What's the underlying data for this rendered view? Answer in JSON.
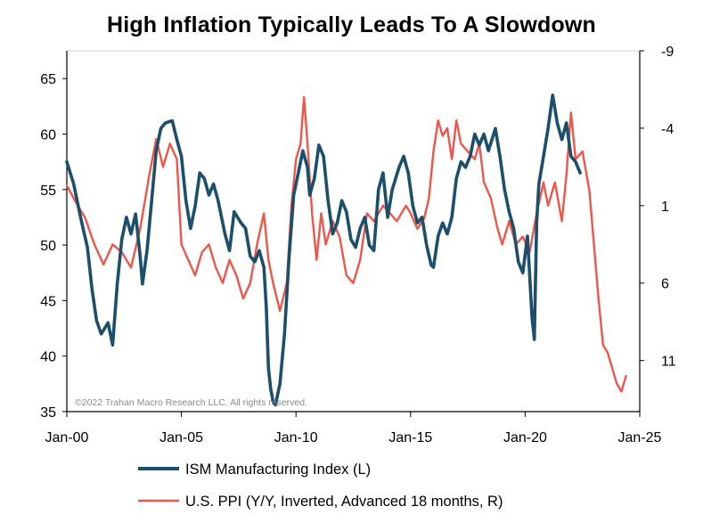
{
  "chart_data": {
    "type": "line",
    "title": "High Inflation Typically Leads To A Slowdown",
    "copyright": "©2022 Trahan Macro Research LLC. All rights reserved.",
    "x_axis": {
      "range": [
        2000.0,
        2025.0
      ],
      "ticks": [
        {
          "value": 2000,
          "label": "Jan-00"
        },
        {
          "value": 2005,
          "label": "Jan-05"
        },
        {
          "value": 2010,
          "label": "Jan-10"
        },
        {
          "value": 2015,
          "label": "Jan-15"
        },
        {
          "value": 2020,
          "label": "Jan-20"
        },
        {
          "value": 2025,
          "label": "Jan-25"
        }
      ]
    },
    "y_left": {
      "range": [
        35,
        67.5
      ],
      "ticks": [
        35,
        40,
        45,
        50,
        55,
        60,
        65
      ],
      "labels": [
        "35",
        "40",
        "45",
        "50",
        "55",
        "60",
        "65"
      ]
    },
    "y_right": {
      "range": [
        -9,
        14.3
      ],
      "inverted": true,
      "ticks": [
        -9,
        -4,
        1,
        6,
        11
      ],
      "labels": [
        "-9",
        "-4",
        "1",
        "6",
        "11"
      ]
    },
    "series": [
      {
        "name": "ISM Manufacturing Index (L)",
        "axis": "left",
        "color": "#1b4f6b",
        "points": [
          [
            2000.0,
            57.5
          ],
          [
            2000.3,
            55.5
          ],
          [
            2000.6,
            52.5
          ],
          [
            2000.9,
            49.8
          ],
          [
            2001.1,
            46.0
          ],
          [
            2001.3,
            43.2
          ],
          [
            2001.5,
            42.0
          ],
          [
            2001.8,
            43.0
          ],
          [
            2002.0,
            41.0
          ],
          [
            2002.2,
            46.5
          ],
          [
            2002.4,
            50.5
          ],
          [
            2002.6,
            52.5
          ],
          [
            2002.8,
            51.0
          ],
          [
            2003.0,
            52.8
          ],
          [
            2003.2,
            49.0
          ],
          [
            2003.3,
            46.5
          ],
          [
            2003.5,
            49.5
          ],
          [
            2003.7,
            54.0
          ],
          [
            2003.9,
            58.5
          ],
          [
            2004.1,
            60.5
          ],
          [
            2004.3,
            61.0
          ],
          [
            2004.6,
            61.2
          ],
          [
            2004.8,
            59.5
          ],
          [
            2005.0,
            58.0
          ],
          [
            2005.2,
            54.0
          ],
          [
            2005.4,
            51.5
          ],
          [
            2005.6,
            53.5
          ],
          [
            2005.8,
            56.5
          ],
          [
            2006.0,
            56.0
          ],
          [
            2006.2,
            54.5
          ],
          [
            2006.4,
            55.5
          ],
          [
            2006.6,
            54.0
          ],
          [
            2006.9,
            51.0
          ],
          [
            2007.1,
            49.5
          ],
          [
            2007.3,
            53.0
          ],
          [
            2007.6,
            52.0
          ],
          [
            2007.8,
            51.5
          ],
          [
            2008.0,
            49.0
          ],
          [
            2008.2,
            48.5
          ],
          [
            2008.4,
            49.5
          ],
          [
            2008.6,
            48.0
          ],
          [
            2008.7,
            44.5
          ],
          [
            2008.8,
            38.9
          ],
          [
            2008.9,
            37.0
          ],
          [
            2009.0,
            35.9
          ],
          [
            2009.1,
            35.6
          ],
          [
            2009.3,
            37.5
          ],
          [
            2009.5,
            42.0
          ],
          [
            2009.7,
            49.0
          ],
          [
            2009.9,
            54.5
          ],
          [
            2010.1,
            56.5
          ],
          [
            2010.3,
            58.5
          ],
          [
            2010.5,
            57.0
          ],
          [
            2010.6,
            54.5
          ],
          [
            2010.8,
            56.0
          ],
          [
            2011.0,
            59.0
          ],
          [
            2011.2,
            58.0
          ],
          [
            2011.4,
            54.0
          ],
          [
            2011.6,
            51.0
          ],
          [
            2011.8,
            52.0
          ],
          [
            2012.0,
            54.0
          ],
          [
            2012.2,
            53.0
          ],
          [
            2012.4,
            50.5
          ],
          [
            2012.6,
            49.8
          ],
          [
            2012.8,
            51.5
          ],
          [
            2013.0,
            52.5
          ],
          [
            2013.2,
            50.0
          ],
          [
            2013.4,
            49.5
          ],
          [
            2013.6,
            55.0
          ],
          [
            2013.8,
            56.5
          ],
          [
            2014.0,
            52.5
          ],
          [
            2014.2,
            55.0
          ],
          [
            2014.5,
            57.0
          ],
          [
            2014.7,
            58.0
          ],
          [
            2014.9,
            56.5
          ],
          [
            2015.1,
            53.5
          ],
          [
            2015.3,
            52.0
          ],
          [
            2015.5,
            52.5
          ],
          [
            2015.7,
            50.0
          ],
          [
            2015.9,
            48.2
          ],
          [
            2016.0,
            48.0
          ],
          [
            2016.2,
            50.8
          ],
          [
            2016.4,
            52.0
          ],
          [
            2016.6,
            51.0
          ],
          [
            2016.8,
            52.5
          ],
          [
            2017.0,
            56.0
          ],
          [
            2017.2,
            57.5
          ],
          [
            2017.4,
            57.0
          ],
          [
            2017.6,
            58.0
          ],
          [
            2017.8,
            60.0
          ],
          [
            2018.0,
            59.0
          ],
          [
            2018.2,
            60.0
          ],
          [
            2018.4,
            58.5
          ],
          [
            2018.7,
            60.5
          ],
          [
            2018.9,
            58.0
          ],
          [
            2019.1,
            55.0
          ],
          [
            2019.3,
            53.0
          ],
          [
            2019.5,
            51.5
          ],
          [
            2019.7,
            48.5
          ],
          [
            2019.9,
            47.5
          ],
          [
            2020.1,
            50.8
          ],
          [
            2020.3,
            43.5
          ],
          [
            2020.4,
            41.5
          ],
          [
            2020.5,
            52.0
          ],
          [
            2020.6,
            55.5
          ],
          [
            2020.8,
            58.0
          ],
          [
            2021.0,
            60.5
          ],
          [
            2021.2,
            63.5
          ],
          [
            2021.4,
            61.0
          ],
          [
            2021.6,
            59.5
          ],
          [
            2021.8,
            61.0
          ],
          [
            2022.0,
            58.0
          ],
          [
            2022.2,
            57.5
          ],
          [
            2022.4,
            56.5
          ]
        ]
      },
      {
        "name": "U.S. PPI (Y/Y, Inverted, Advanced 18 months, R)",
        "axis": "right",
        "color": "#f0554a",
        "points": [
          [
            2000.0,
            -0.3
          ],
          [
            2000.4,
            0.8
          ],
          [
            2000.8,
            1.8
          ],
          [
            2001.2,
            3.5
          ],
          [
            2001.6,
            4.8
          ],
          [
            2002.0,
            3.5
          ],
          [
            2002.4,
            4.0
          ],
          [
            2002.8,
            5.0
          ],
          [
            2003.2,
            2.5
          ],
          [
            2003.6,
            -1.0
          ],
          [
            2003.9,
            -3.3
          ],
          [
            2004.2,
            -1.5
          ],
          [
            2004.5,
            -3.0
          ],
          [
            2004.8,
            -2.0
          ],
          [
            2005.0,
            3.5
          ],
          [
            2005.3,
            4.5
          ],
          [
            2005.6,
            5.5
          ],
          [
            2005.9,
            4.0
          ],
          [
            2006.2,
            3.5
          ],
          [
            2006.5,
            5.0
          ],
          [
            2006.8,
            6.0
          ],
          [
            2007.1,
            4.5
          ],
          [
            2007.4,
            5.5
          ],
          [
            2007.7,
            7.0
          ],
          [
            2008.0,
            6.0
          ],
          [
            2008.3,
            3.5
          ],
          [
            2008.6,
            1.5
          ],
          [
            2008.8,
            4.5
          ],
          [
            2009.0,
            6.0
          ],
          [
            2009.3,
            7.8
          ],
          [
            2009.6,
            6.0
          ],
          [
            2009.8,
            1.0
          ],
          [
            2010.0,
            -2.0
          ],
          [
            2010.2,
            -3.0
          ],
          [
            2010.35,
            -6.0
          ],
          [
            2010.5,
            -3.0
          ],
          [
            2010.7,
            1.5
          ],
          [
            2010.9,
            4.5
          ],
          [
            2011.1,
            1.5
          ],
          [
            2011.3,
            3.5
          ],
          [
            2011.6,
            2.0
          ],
          [
            2011.9,
            3.0
          ],
          [
            2012.2,
            5.5
          ],
          [
            2012.5,
            6.0
          ],
          [
            2012.8,
            4.5
          ],
          [
            2013.1,
            1.5
          ],
          [
            2013.4,
            2.0
          ],
          [
            2013.8,
            1.0
          ],
          [
            2014.1,
            1.5
          ],
          [
            2014.4,
            2.0
          ],
          [
            2014.8,
            1.0
          ],
          [
            2015.0,
            1.5
          ],
          [
            2015.3,
            2.5
          ],
          [
            2015.6,
            1.8
          ],
          [
            2015.8,
            0.5
          ],
          [
            2016.0,
            -2.5
          ],
          [
            2016.2,
            -4.5
          ],
          [
            2016.4,
            -3.5
          ],
          [
            2016.6,
            -4.0
          ],
          [
            2016.8,
            -2.0
          ],
          [
            2017.0,
            -4.5
          ],
          [
            2017.2,
            -3.0
          ],
          [
            2017.5,
            -2.5
          ],
          [
            2017.8,
            -2.0
          ],
          [
            2018.0,
            -3.0
          ],
          [
            2018.2,
            -0.5
          ],
          [
            2018.5,
            0.5
          ],
          [
            2018.8,
            2.5
          ],
          [
            2019.0,
            3.5
          ],
          [
            2019.3,
            2.0
          ],
          [
            2019.6,
            3.5
          ],
          [
            2019.9,
            3.0
          ],
          [
            2020.2,
            4.0
          ],
          [
            2020.5,
            1.5
          ],
          [
            2020.8,
            -0.5
          ],
          [
            2021.0,
            1.0
          ],
          [
            2021.3,
            -0.5
          ],
          [
            2021.6,
            2.0
          ],
          [
            2021.8,
            -1.0
          ],
          [
            2022.0,
            -5.0
          ],
          [
            2022.2,
            -2.0
          ],
          [
            2022.5,
            -2.5
          ],
          [
            2022.8,
            0.0
          ],
          [
            2023.0,
            3.5
          ],
          [
            2023.2,
            7.0
          ],
          [
            2023.4,
            10.0
          ],
          [
            2023.6,
            10.5
          ],
          [
            2023.8,
            11.5
          ],
          [
            2024.0,
            12.5
          ],
          [
            2024.2,
            13.0
          ],
          [
            2024.4,
            12.0
          ]
        ]
      }
    ],
    "legend": {
      "placement": "bottom",
      "items": [
        {
          "label": "ISM Manufacturing Index (L)",
          "color": "#1b4f6b"
        },
        {
          "label": "U.S. PPI (Y/Y, Inverted, Advanced 18 months, R)",
          "color": "#f0554a"
        }
      ]
    },
    "grid": false
  }
}
